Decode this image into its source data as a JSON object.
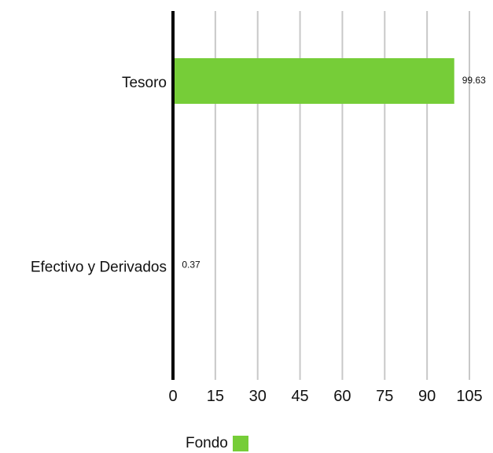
{
  "chart_data": {
    "type": "bar",
    "orientation": "horizontal",
    "categories": [
      "Tesoro",
      "Efectivo y Derivados"
    ],
    "series": [
      {
        "name": "Fondo",
        "values": [
          99.63,
          0.37
        ],
        "color": "#76cd38"
      }
    ],
    "data_labels": [
      "99.63",
      "0.37"
    ],
    "xlim": [
      0,
      105
    ],
    "xticks": [
      0,
      15,
      30,
      45,
      60,
      75,
      90,
      105
    ],
    "xtick_labels": [
      "0",
      "15",
      "30",
      "45",
      "60",
      "75",
      "90",
      "105"
    ],
    "grid": "vertical",
    "legend": "bottom-center",
    "title": "",
    "xlabel": "",
    "ylabel": ""
  },
  "legend": {
    "label": "Fondo",
    "color": "#76cd38"
  }
}
